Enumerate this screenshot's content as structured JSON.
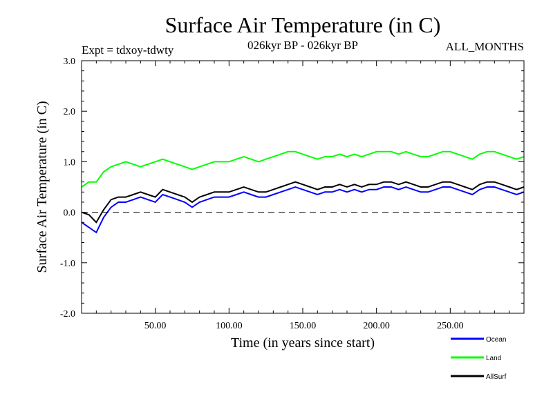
{
  "chart_data": {
    "type": "line",
    "title": "Surface Air Temperature (in C)",
    "subtitle": "026kyr BP - 026kyr BP",
    "experiment": "Expt = tdxoy-tdwty",
    "period": "ALL_MONTHS",
    "xlabel": "Time (in years since start)",
    "ylabel": "Surface Air Temperature (in C)",
    "xlim": [
      0,
      300
    ],
    "ylim": [
      -2.0,
      3.0
    ],
    "x_ticks": [
      50,
      100,
      150,
      200,
      250
    ],
    "x_tick_labels": [
      "50.00",
      "100.00",
      "150.00",
      "200.00",
      "250.00"
    ],
    "y_ticks": [
      -2,
      -1,
      0,
      1,
      2,
      3
    ],
    "y_tick_labels": [
      "-2.0",
      "-1.0",
      "0.0",
      "1.0",
      "2.0",
      "3.0"
    ],
    "zero_line": true,
    "grid": false,
    "legend_position": "bottom-right",
    "x": [
      0,
      5,
      10,
      15,
      20,
      25,
      30,
      35,
      40,
      45,
      50,
      55,
      60,
      65,
      70,
      75,
      80,
      85,
      90,
      95,
      100,
      105,
      110,
      115,
      120,
      125,
      130,
      135,
      140,
      145,
      150,
      155,
      160,
      165,
      170,
      175,
      180,
      185,
      190,
      195,
      200,
      205,
      210,
      215,
      220,
      225,
      230,
      235,
      240,
      245,
      250,
      255,
      260,
      265,
      270,
      275,
      280,
      285,
      290,
      295,
      300
    ],
    "series": [
      {
        "name": "AllSurf",
        "color": "#000000",
        "values": [
          0.0,
          -0.05,
          -0.2,
          0.05,
          0.25,
          0.3,
          0.3,
          0.35,
          0.4,
          0.35,
          0.3,
          0.45,
          0.4,
          0.35,
          0.3,
          0.2,
          0.3,
          0.35,
          0.4,
          0.4,
          0.4,
          0.45,
          0.5,
          0.45,
          0.4,
          0.4,
          0.45,
          0.5,
          0.55,
          0.6,
          0.55,
          0.5,
          0.45,
          0.5,
          0.5,
          0.55,
          0.5,
          0.55,
          0.5,
          0.55,
          0.55,
          0.6,
          0.6,
          0.55,
          0.6,
          0.55,
          0.5,
          0.5,
          0.55,
          0.6,
          0.6,
          0.55,
          0.5,
          0.45,
          0.55,
          0.6,
          0.6,
          0.55,
          0.5,
          0.45,
          0.5
        ]
      },
      {
        "name": "Land",
        "color": "#00ff00",
        "values": [
          0.5,
          0.6,
          0.6,
          0.8,
          0.9,
          0.95,
          1.0,
          0.95,
          0.9,
          0.95,
          1.0,
          1.05,
          1.0,
          0.95,
          0.9,
          0.85,
          0.9,
          0.95,
          1.0,
          1.0,
          1.0,
          1.05,
          1.1,
          1.05,
          1.0,
          1.05,
          1.1,
          1.15,
          1.2,
          1.2,
          1.15,
          1.1,
          1.05,
          1.1,
          1.1,
          1.15,
          1.1,
          1.15,
          1.1,
          1.15,
          1.2,
          1.2,
          1.2,
          1.15,
          1.2,
          1.15,
          1.1,
          1.1,
          1.15,
          1.2,
          1.2,
          1.15,
          1.1,
          1.05,
          1.15,
          1.2,
          1.2,
          1.15,
          1.1,
          1.05,
          1.1
        ]
      },
      {
        "name": "Ocean",
        "color": "#0000ff",
        "values": [
          -0.2,
          -0.3,
          -0.4,
          -0.1,
          0.1,
          0.2,
          0.2,
          0.25,
          0.3,
          0.25,
          0.2,
          0.35,
          0.3,
          0.25,
          0.2,
          0.1,
          0.2,
          0.25,
          0.3,
          0.3,
          0.3,
          0.35,
          0.4,
          0.35,
          0.3,
          0.3,
          0.35,
          0.4,
          0.45,
          0.5,
          0.45,
          0.4,
          0.35,
          0.4,
          0.4,
          0.45,
          0.4,
          0.45,
          0.4,
          0.45,
          0.45,
          0.5,
          0.5,
          0.45,
          0.5,
          0.45,
          0.4,
          0.4,
          0.45,
          0.5,
          0.5,
          0.45,
          0.4,
          0.35,
          0.45,
          0.5,
          0.5,
          0.45,
          0.4,
          0.35,
          0.4
        ]
      }
    ],
    "legend": [
      {
        "label": "Ocean",
        "color": "#0000ff"
      },
      {
        "label": "Land",
        "color": "#00ff00"
      },
      {
        "label": "AllSurf",
        "color": "#000000"
      }
    ]
  }
}
